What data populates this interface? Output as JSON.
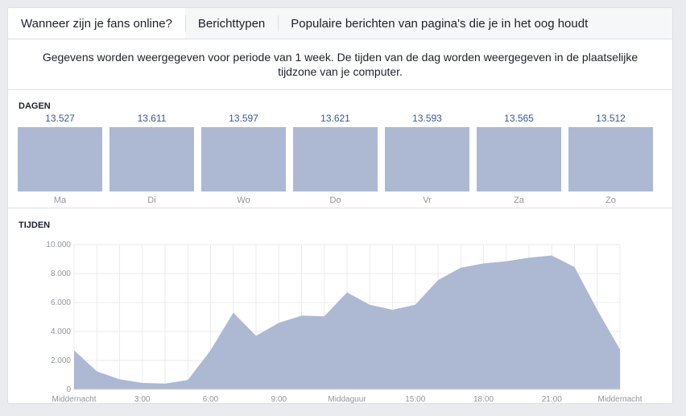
{
  "tabs": [
    {
      "label": "Wanneer zijn je fans online?",
      "active": true
    },
    {
      "label": "Berichttypen",
      "active": false
    },
    {
      "label": "Populaire berichten van pagina's die je in het oog houdt",
      "active": false
    }
  ],
  "notice": "Gegevens worden weergegeven voor periode van 1 week. De tijden van de dag worden weergegeven in de plaatselijke tijdzone van je computer.",
  "days": {
    "title": "DAGEN",
    "items": [
      {
        "label": "Ma",
        "value": "13.527"
      },
      {
        "label": "Di",
        "value": "13.611"
      },
      {
        "label": "Wo",
        "value": "13.597"
      },
      {
        "label": "Do",
        "value": "13.621"
      },
      {
        "label": "Vr",
        "value": "13.593"
      },
      {
        "label": "Za",
        "value": "13.565"
      },
      {
        "label": "Zo",
        "value": "13.512"
      }
    ]
  },
  "times": {
    "title": "TIJDEN",
    "y_tick_labels": [
      "0",
      "2.000",
      "4.000",
      "6.000",
      "8.000",
      "10.000"
    ],
    "x_tick_labels": [
      "Middernacht",
      "3:00",
      "6:00",
      "9:00",
      "Middaguur",
      "15:00",
      "18:00",
      "21:00",
      "Middernacht"
    ]
  },
  "chart_data": {
    "type": "area",
    "x": [
      0,
      1,
      2,
      3,
      4,
      5,
      6,
      7,
      8,
      9,
      10,
      11,
      12,
      13,
      14,
      15,
      16,
      17,
      18,
      19,
      20,
      21,
      22,
      23,
      24
    ],
    "values": [
      2700,
      1250,
      700,
      450,
      400,
      650,
      2700,
      5300,
      3700,
      4600,
      5100,
      5050,
      6700,
      5850,
      5500,
      5850,
      7550,
      8400,
      8700,
      8850,
      9100,
      9250,
      8450,
      5500,
      2750
    ],
    "ylim": [
      0,
      10000
    ],
    "xlim": [
      0,
      24
    ],
    "grid": true,
    "color": "#adb9d3"
  },
  "colors": {
    "bar": "#adb9d3",
    "value_text": "#365899",
    "grid": "#e9ebee"
  }
}
